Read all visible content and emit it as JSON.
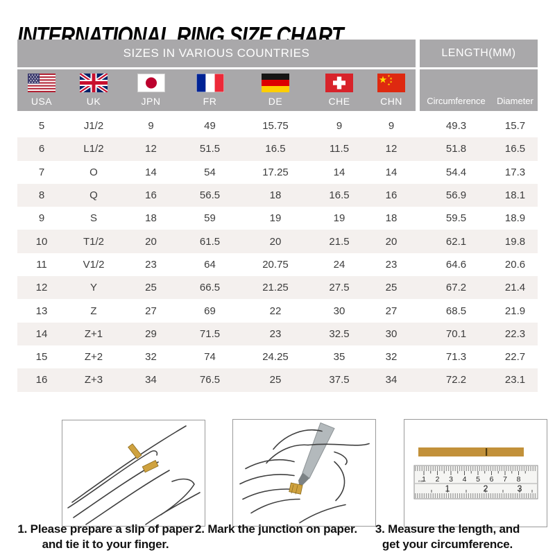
{
  "title": "INTERNATIONAL RING SIZE CHART",
  "table": {
    "group_headers": {
      "left": "SIZES IN VARIOUS COUNTRIES",
      "right": "LENGTH(MM)"
    },
    "countries": [
      {
        "code": "USA",
        "label": "USA",
        "icon": "usa-flag-icon"
      },
      {
        "code": "UK",
        "label": "UK",
        "icon": "uk-flag-icon"
      },
      {
        "code": "JPN",
        "label": "JPN",
        "icon": "japan-flag-icon"
      },
      {
        "code": "FR",
        "label": "FR",
        "icon": "france-flag-icon"
      },
      {
        "code": "DE",
        "label": "DE",
        "icon": "germany-flag-icon"
      },
      {
        "code": "CHE",
        "label": "CHE",
        "icon": "switzerland-flag-icon"
      },
      {
        "code": "CHN",
        "label": "CHN",
        "icon": "china-flag-icon"
      }
    ],
    "length_columns": [
      "Circumference",
      "Diameter"
    ]
  },
  "chart_data": {
    "type": "table",
    "title": "INTERNATIONAL RING SIZE CHART",
    "column_groups": [
      "SIZES IN VARIOUS COUNTRIES",
      "LENGTH(MM)"
    ],
    "columns": [
      "USA",
      "UK",
      "JPN",
      "FR",
      "DE",
      "CHE",
      "CHN",
      "Circumference",
      "Diameter"
    ],
    "rows": [
      [
        "5",
        "J1/2",
        "9",
        "49",
        "15.75",
        "9",
        "9",
        "49.3",
        "15.7"
      ],
      [
        "6",
        "L1/2",
        "12",
        "51.5",
        "16.5",
        "11.5",
        "12",
        "51.8",
        "16.5"
      ],
      [
        "7",
        "O",
        "14",
        "54",
        "17.25",
        "14",
        "14",
        "54.4",
        "17.3"
      ],
      [
        "8",
        "Q",
        "16",
        "56.5",
        "18",
        "16.5",
        "16",
        "56.9",
        "18.1"
      ],
      [
        "9",
        "S",
        "18",
        "59",
        "19",
        "19",
        "18",
        "59.5",
        "18.9"
      ],
      [
        "10",
        "T1/2",
        "20",
        "61.5",
        "20",
        "21.5",
        "20",
        "62.1",
        "19.8"
      ],
      [
        "11",
        "V1/2",
        "23",
        "64",
        "20.75",
        "24",
        "23",
        "64.6",
        "20.6"
      ],
      [
        "12",
        "Y",
        "25",
        "66.5",
        "21.25",
        "27.5",
        "25",
        "67.2",
        "21.4"
      ],
      [
        "13",
        "Z",
        "27",
        "69",
        "22",
        "30",
        "27",
        "68.5",
        "21.9"
      ],
      [
        "14",
        "Z+1",
        "29",
        "71.5",
        "23",
        "32.5",
        "30",
        "70.1",
        "22.3"
      ],
      [
        "15",
        "Z+2",
        "32",
        "74",
        "24.25",
        "35",
        "32",
        "71.3",
        "22.7"
      ],
      [
        "16",
        "Z+3",
        "34",
        "76.5",
        "25",
        "37.5",
        "34",
        "72.2",
        "23.1"
      ]
    ]
  },
  "instructions": [
    {
      "icon": "hand-with-paper-strip-illustration",
      "lines": [
        "1. Please prepare a slip of paper",
        "and tie it to your finger."
      ]
    },
    {
      "icon": "pen-marking-illustration",
      "lines": [
        "2. Mark the junction on paper."
      ]
    },
    {
      "icon": "ruler-measurement-illustration",
      "lines": [
        "3. Measure the length, and",
        "get your circumference."
      ]
    }
  ],
  "ruler": {
    "cm_ticks": [
      "1",
      "2",
      "3",
      "4",
      "5",
      "6",
      "7",
      "8"
    ],
    "inch_ticks": [
      "1",
      "2",
      "3"
    ],
    "unit_label": "mm"
  },
  "colors": {
    "header_gray": "#a9a8aa",
    "row_stripe": "#f4f0ee",
    "paper_gold": "#c79a3b",
    "text_dark": "#3c3c3c"
  }
}
